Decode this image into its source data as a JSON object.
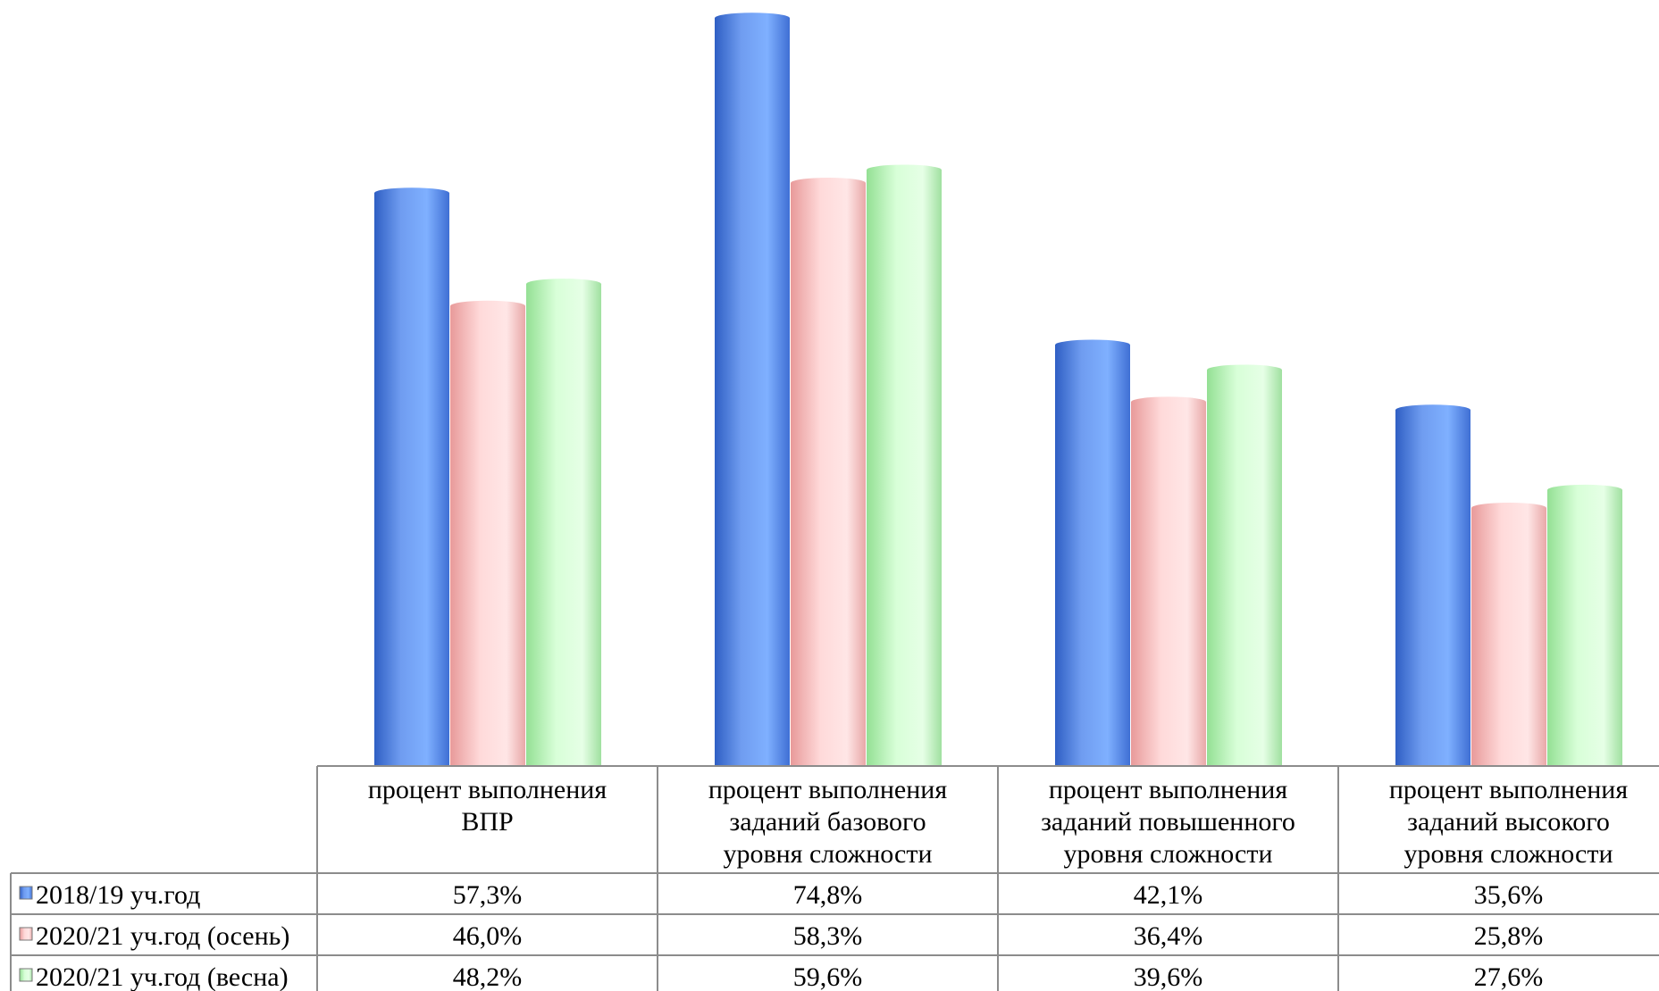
{
  "chart_data": {
    "type": "bar",
    "title": "",
    "xlabel": "",
    "ylabel": "",
    "ylim": [
      0,
      80
    ],
    "grid": false,
    "legend_placement": "data-table-left",
    "categories": [
      [
        "процент выполнения",
        "ВПР"
      ],
      [
        "процент выполнения",
        "заданий базового",
        "уровня сложности"
      ],
      [
        "процент выполнения",
        "заданий повышенного",
        "уровня сложности"
      ],
      [
        "процент выполнения",
        "заданий высокого",
        "уровня сложности"
      ]
    ],
    "series": [
      {
        "name": "2018/19 уч.год",
        "color": "#5b8fe6",
        "values": [
          57.3,
          74.8,
          42.1,
          35.6
        ],
        "labels": [
          "57,3%",
          "74,8%",
          "42,1%",
          "35,6%"
        ]
      },
      {
        "name": "2020/21 уч.год (осень)",
        "color": "#f5c2c2",
        "values": [
          46.0,
          58.3,
          36.4,
          25.8
        ],
        "labels": [
          "46,0%",
          "58,3%",
          "36,4%",
          "25,8%"
        ]
      },
      {
        "name": "2020/21 уч.год (весна)",
        "color": "#c6f5c6",
        "values": [
          48.2,
          59.6,
          39.6,
          27.6
        ],
        "labels": [
          "48,2%",
          "59,6%",
          "39,6%",
          "27,6%"
        ]
      }
    ]
  }
}
